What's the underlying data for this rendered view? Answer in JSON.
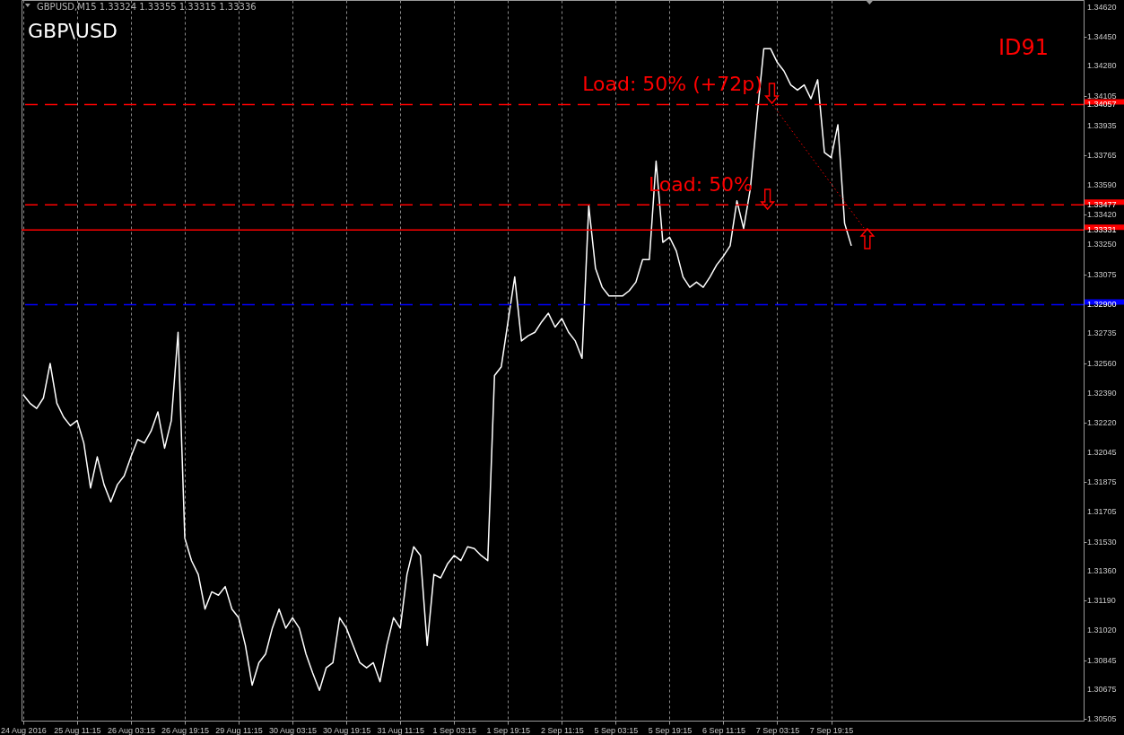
{
  "chart_data": {
    "type": "line",
    "title": "GBP\\USD",
    "subtitle": "GBPUSD,M15  1.33324 1.33355 1.33315 1.33336",
    "categories": [
      "24 Aug 2016",
      null,
      null,
      null,
      null,
      null,
      null,
      null,
      "25 Aug 11:15",
      null,
      null,
      null,
      null,
      null,
      null,
      null,
      "26 Aug 03:15",
      null,
      null,
      null,
      null,
      null,
      null,
      null,
      "26 Aug 19:15",
      null,
      null,
      null,
      null,
      null,
      null,
      null,
      "29 Aug 11:15",
      null,
      null,
      null,
      null,
      null,
      null,
      null,
      "30 Aug 03:15",
      null,
      null,
      null,
      null,
      null,
      null,
      null,
      "30 Aug 19:15",
      null,
      null,
      null,
      null,
      null,
      null,
      null,
      "31 Aug 11:15",
      null,
      null,
      null,
      null,
      null,
      null,
      null,
      "1 Sep 03:15",
      null,
      null,
      null,
      null,
      null,
      null,
      null,
      "1 Sep 19:15",
      null,
      null,
      null,
      null,
      null,
      null,
      null,
      "2 Sep 11:15",
      null,
      null,
      null,
      null,
      null,
      null,
      null,
      "5 Sep 03:15",
      null,
      null,
      null,
      null,
      null,
      null,
      null,
      "5 Sep 19:15",
      null,
      null,
      null,
      null,
      null,
      null,
      null,
      "6 Sep 11:15",
      null,
      null,
      null,
      null,
      null,
      null,
      null,
      "7 Sep 03:15",
      null,
      null,
      null,
      null,
      null,
      null,
      null,
      "7 Sep 19:15",
      null,
      null,
      null,
      null,
      null,
      null,
      null,
      null,
      null,
      null,
      null,
      null,
      null,
      null,
      null,
      null,
      null,
      null,
      null,
      null,
      null,
      null,
      null,
      null,
      null,
      null,
      null,
      null,
      null,
      null,
      null,
      null,
      null,
      null,
      null,
      null,
      null
    ],
    "series": [
      {
        "color": "#ffffff",
        "values": [
          1.3238,
          1.3233,
          1.323,
          1.3236,
          1.3256,
          1.3233,
          1.3225,
          1.322,
          1.3223,
          1.321,
          1.3184,
          1.3202,
          1.3186,
          1.3176,
          1.3186,
          1.3191,
          1.3202,
          1.3212,
          1.321,
          1.3217,
          1.3228,
          1.3207,
          1.3223,
          1.3274,
          1.3155,
          1.3142,
          1.3134,
          1.3114,
          1.3124,
          1.3122,
          1.3127,
          1.3114,
          1.3109,
          1.3093,
          1.307,
          1.3083,
          1.3088,
          1.3103,
          1.3114,
          1.3103,
          1.3109,
          1.3103,
          1.3088,
          1.3077,
          1.3067,
          1.308,
          1.3083,
          1.3109,
          1.3103,
          1.3093,
          1.3083,
          1.308,
          1.3083,
          1.3072,
          1.3093,
          1.3109,
          1.3103,
          1.3134,
          1.315,
          1.3145,
          1.3093,
          1.3134,
          1.3132,
          1.314,
          1.3145,
          1.3142,
          1.315,
          1.3149,
          1.3145,
          1.3142,
          1.3249,
          1.3254,
          1.328,
          1.3306,
          1.3269,
          1.3272,
          1.3274,
          1.328,
          1.3285,
          1.3277,
          1.3282,
          1.3274,
          1.3269,
          1.3259,
          1.3347,
          1.3311,
          1.33,
          1.3295,
          1.3295,
          1.3295,
          1.3298,
          1.3303,
          1.3316,
          1.3316,
          1.3373,
          1.3326,
          1.3329,
          1.3321,
          1.3306,
          1.33,
          1.3303,
          1.33,
          1.3306,
          1.3313,
          1.3318,
          1.3324,
          1.335,
          1.3334,
          1.3357,
          1.3399,
          1.3438,
          1.3438,
          1.343,
          1.3425,
          1.3417,
          1.3414,
          1.3417,
          1.3409,
          1.342,
          1.3378,
          1.3375,
          1.3394,
          1.3337,
          1.3324,
          null,
          null,
          null,
          null,
          null,
          null,
          null,
          null,
          null,
          null,
          null,
          null,
          null,
          null,
          null,
          null,
          null,
          null,
          null,
          null,
          null,
          null,
          null,
          null,
          null,
          null,
          null,
          null,
          null,
          null,
          null,
          null,
          null,
          null
        ]
      }
    ],
    "ylim": [
      1.30495,
      1.34661
    ],
    "yticks": [
      {
        "value": 1.3462,
        "label": "1.34620"
      },
      {
        "value": 1.3445,
        "label": "1.34450"
      },
      {
        "value": 1.3428,
        "label": "1.34280"
      },
      1.34105,
      1.33935,
      1.33765,
      {
        "value": 1.3359,
        "label": "1.33590"
      },
      {
        "value": 1.3342,
        "label": "1.33420"
      },
      {
        "value": 1.3325,
        "label": "1.33250"
      },
      1.33075,
      1.32735,
      {
        "value": 1.3256,
        "label": "1.32560"
      },
      {
        "value": 1.3239,
        "label": "1.32390"
      },
      {
        "value": 1.3222,
        "label": "1.32220"
      },
      1.32045,
      1.31875,
      1.31705,
      {
        "value": 1.3153,
        "label": "1.31530"
      },
      {
        "value": 1.3136,
        "label": "1.31360"
      },
      {
        "value": 1.3119,
        "label": "1.31190"
      },
      {
        "value": 1.3102,
        "label": "1.31020"
      },
      1.30845,
      1.30675,
      1.30505
    ],
    "ref_lines": [
      {
        "axis": "y",
        "value": 1.34057,
        "label": "1.34057",
        "color": "#ff0000",
        "line_style": "dashed"
      },
      {
        "axis": "y",
        "value": 1.33477,
        "label": "1.33477",
        "color": "#ff0000",
        "line_style": "dashed"
      },
      {
        "axis": "y",
        "value": 1.33331,
        "label": "1.33331",
        "color": "#ff0000",
        "line_style": "solid"
      },
      {
        "axis": "y",
        "value": 1.329,
        "label": "1.32900",
        "color": "#0000ff",
        "line_style": "dashed"
      }
    ],
    "annotations": [
      "ID91",
      {
        "text": "Load: 50% (+72p)",
        "y": 1.34057
      },
      {
        "text": "Load: 50%",
        "y": 1.33477
      }
    ],
    "grid": "x",
    "marker": "none",
    "line_style": "solid"
  }
}
